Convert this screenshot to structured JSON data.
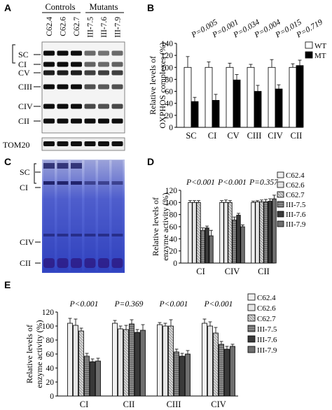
{
  "panels": {
    "A": {
      "letter": "A",
      "group_labels": [
        "Controls",
        "Mutants"
      ],
      "lane_labels": [
        "C62.4",
        "C62.6",
        "C62.7",
        "III-7.5",
        "III-7.6",
        "III-7.9"
      ],
      "band_labels": [
        "SC",
        "CI",
        "CV",
        "CIII",
        "CIV",
        "CII"
      ],
      "loading_label": "TOM20"
    },
    "C": {
      "letter": "C",
      "band_labels": [
        "SC",
        "CI",
        "CIV",
        "CII"
      ]
    }
  },
  "chart_data": [
    {
      "id": "B",
      "letter": "B",
      "type": "bar",
      "categories": [
        "SC",
        "CI",
        "CV",
        "CIII",
        "CIV",
        "CII"
      ],
      "series": [
        {
          "name": "WT",
          "color": "#ffffff",
          "values": [
            100,
            100,
            100,
            100,
            100,
            100
          ],
          "errors": [
            18,
            9,
            7,
            5,
            13,
            6
          ]
        },
        {
          "name": "MT",
          "color": "#000000",
          "values": [
            43,
            45,
            79,
            60,
            64,
            103
          ],
          "errors": [
            7,
            10,
            9,
            10,
            7,
            9
          ]
        }
      ],
      "pvalues": [
        "P=0.005",
        "P=0.001",
        "P=0.034",
        "P=0.004",
        "P=0.015",
        "P=0.719"
      ],
      "ylabel": "Relative levels of OXPHOS complexes (%)",
      "ylim": [
        0,
        140
      ],
      "yticks": [
        0,
        20,
        40,
        60,
        80,
        100,
        120,
        140
      ],
      "legend": "top-right"
    },
    {
      "id": "D",
      "letter": "D",
      "type": "bar",
      "categories": [
        "CI",
        "CIV",
        "CII"
      ],
      "series": [
        {
          "name": "C62.4",
          "color": "#f0f0f0",
          "values": [
            100,
            100,
            100
          ],
          "errors": [
            3,
            3,
            2
          ]
        },
        {
          "name": "C62.6",
          "color": "#e6e6e6",
          "values": [
            100,
            100,
            101
          ],
          "errors": [
            3,
            4,
            2
          ]
        },
        {
          "name": "C62.7",
          "color": "#d6d6d6",
          "values": [
            100,
            100,
            101
          ],
          "errors": [
            3,
            3,
            3
          ]
        },
        {
          "name": "III-7.5",
          "color": "#8a8a8a",
          "values": [
            54,
            71,
            101
          ],
          "errors": [
            4,
            5,
            4
          ]
        },
        {
          "name": "III-7.6",
          "color": "#3a3a3a",
          "values": [
            58,
            79,
            102
          ],
          "errors": [
            3,
            3,
            4
          ]
        },
        {
          "name": "III-7.9",
          "color": "#6e6e6e",
          "values": [
            45,
            60,
            106
          ],
          "errors": [
            9,
            3,
            6
          ]
        }
      ],
      "pvalues": [
        "P<0.001",
        "P<0.001",
        "P=0.357"
      ],
      "ylabel": "Relative levels of enzyme activity (%)",
      "ylim": [
        0,
        120
      ],
      "yticks": [
        0,
        20,
        40,
        60,
        80,
        100,
        120
      ],
      "legend": "right"
    },
    {
      "id": "E",
      "letter": "E",
      "type": "bar",
      "categories": [
        "CI",
        "CII",
        "CIII",
        "CIV"
      ],
      "series": [
        {
          "name": "C62.4",
          "color": "#f0f0f0",
          "values": [
            104,
            104,
            102,
            104
          ],
          "errors": [
            7,
            4,
            3,
            6
          ]
        },
        {
          "name": "C62.6",
          "color": "#e6e6e6",
          "values": [
            101,
            96,
            100,
            100
          ],
          "errors": [
            9,
            4,
            4,
            6
          ]
        },
        {
          "name": "C62.7",
          "color": "#d6d6d6",
          "values": [
            93,
            95,
            100,
            90
          ],
          "errors": [
            4,
            6,
            9,
            8
          ]
        },
        {
          "name": "III-7.5",
          "color": "#8a8a8a",
          "values": [
            57,
            103,
            63,
            74
          ],
          "errors": [
            4,
            6,
            4,
            4
          ]
        },
        {
          "name": "III-7.6",
          "color": "#3a3a3a",
          "values": [
            49,
            91,
            57,
            67
          ],
          "errors": [
            4,
            4,
            4,
            4
          ]
        },
        {
          "name": "III-7.9",
          "color": "#6e6e6e",
          "values": [
            50,
            94,
            60,
            71
          ],
          "errors": [
            4,
            8,
            5,
            3
          ]
        }
      ],
      "pvalues": [
        "P<0.001",
        "P=0.369",
        "P<0.001",
        "P<0.001"
      ],
      "ylabel": "Relative levels of enzyme activity (%)",
      "ylim": [
        0,
        120
      ],
      "yticks": [
        0,
        20,
        40,
        60,
        80,
        100,
        120
      ],
      "legend": "right"
    }
  ]
}
